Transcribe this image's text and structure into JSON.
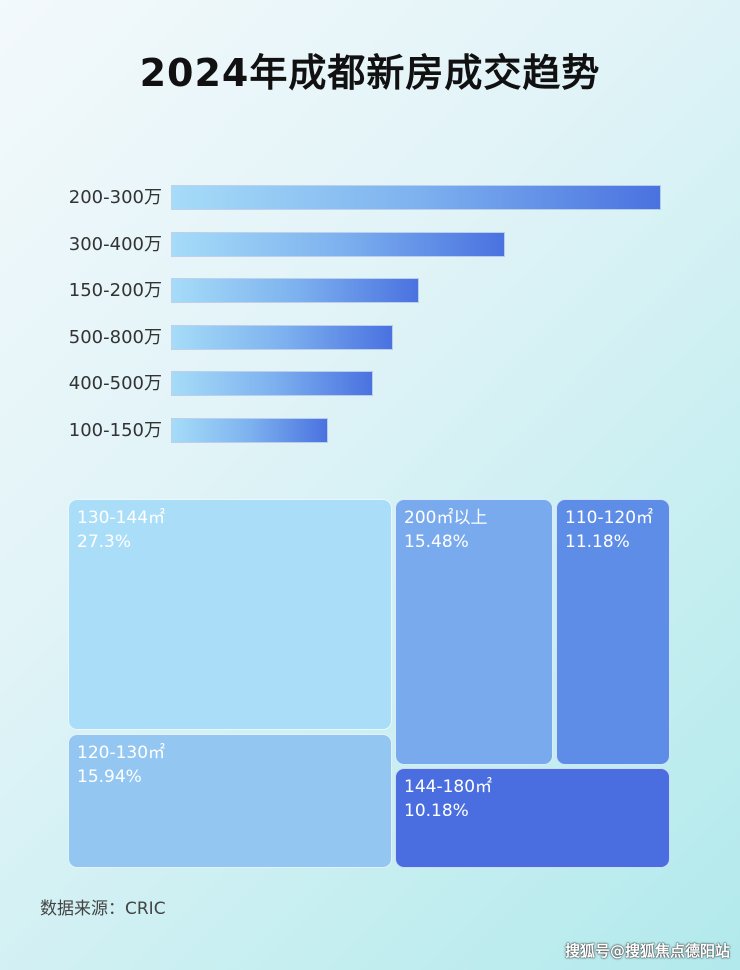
{
  "chart_data": [
    {
      "type": "bar",
      "orientation": "horizontal",
      "title": "2024年成都新房成交趋势",
      "categories": [
        "200-300万",
        "300-400万",
        "150-200万",
        "500-800万",
        "400-500万",
        "100-150万"
      ],
      "values": [
        100,
        68,
        50.4,
        45.1,
        41,
        31.8
      ],
      "value_note": "relative bar length, longest = 100; no axis shown",
      "grid": false,
      "gradient": [
        "#a6dcf8",
        "#4a72e0"
      ]
    },
    {
      "type": "treemap",
      "items": [
        {
          "label": "130-144㎡",
          "value_label": "27.3%",
          "value": 27.3,
          "color": "#aadef8"
        },
        {
          "label": "120-130㎡",
          "value_label": "15.94%",
          "value": 15.94,
          "color": "#93c7f1"
        },
        {
          "label": "200㎡以上",
          "value_label": "15.48%",
          "value": 15.48,
          "color": "#78aaed"
        },
        {
          "label": "110-120㎡",
          "value_label": "11.18%",
          "value": 11.18,
          "color": "#5d8de6"
        },
        {
          "label": "144-180㎡",
          "value_label": "10.18%",
          "value": 10.18,
          "color": "#4a6ddf"
        }
      ]
    }
  ],
  "source": "数据来源：CRIC",
  "watermark": "搜狐号@搜狐焦点德阳站"
}
